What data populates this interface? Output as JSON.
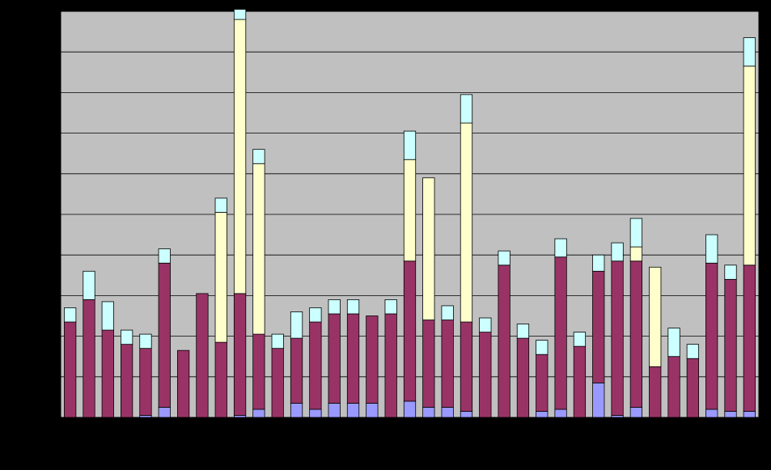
{
  "chart_data": {
    "type": "bar",
    "stacked": true,
    "ylim": [
      0,
      100
    ],
    "grid": true,
    "colors": {
      "background": "#000000",
      "plot_area": "#C0C0C0",
      "gridline": "#000000",
      "series": [
        "#9999FF",
        "#993366",
        "#FFFFCC",
        "#CCFFFF"
      ]
    },
    "series": [
      {
        "values": [
          0,
          0,
          0,
          0,
          0.5,
          2.5,
          0,
          0,
          0,
          0.5,
          2,
          0,
          3.5,
          2,
          3.5,
          3.5,
          3.5,
          0,
          4,
          2.5,
          2.5,
          1.5,
          0,
          0,
          0,
          1.5,
          2,
          0,
          8.5,
          0.5,
          2.5,
          0,
          0,
          0,
          2,
          1.5,
          1.5
        ]
      },
      {
        "values": [
          23.5,
          29,
          21.5,
          18,
          16.5,
          35.5,
          16.5,
          30.5,
          18.5,
          30,
          18.5,
          17,
          16,
          21.5,
          22,
          22,
          21.5,
          25.5,
          34.5,
          21.5,
          21.5,
          22,
          21,
          37.5,
          19.5,
          14,
          37.5,
          17.5,
          27.5,
          38,
          36,
          12.5,
          15,
          14.5,
          36,
          32.5,
          36
        ]
      },
      {
        "values": [
          0,
          0,
          0,
          0,
          0,
          0,
          0,
          0,
          32,
          67.5,
          42,
          0,
          0,
          0,
          0,
          0,
          0,
          0,
          25,
          35,
          0,
          49,
          0,
          0,
          0,
          0,
          0,
          0,
          0,
          0,
          3.5,
          24.5,
          0,
          0,
          0,
          0,
          49
        ]
      },
      {
        "values": [
          3.5,
          7,
          7,
          3.5,
          3.5,
          3.5,
          0,
          0,
          3.5,
          2.5,
          3.5,
          3.5,
          6.5,
          3.5,
          3.5,
          3.5,
          0,
          3.5,
          7,
          0,
          3.5,
          7,
          3.5,
          3.5,
          3.5,
          3.5,
          4.5,
          3.5,
          4,
          4.5,
          7,
          0,
          7,
          3.5,
          7,
          3.5,
          7
        ]
      }
    ]
  }
}
